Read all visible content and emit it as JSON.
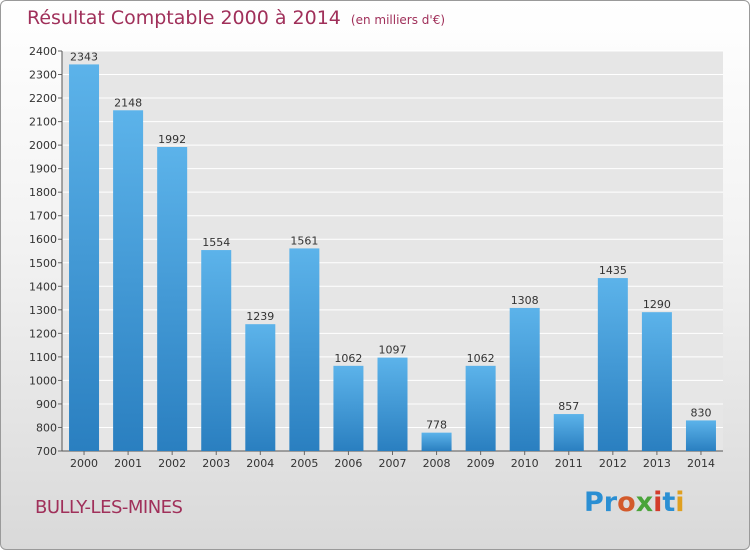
{
  "title": "Résultat Comptable 2000 à 2014",
  "subtitle": "(en milliers d'€)",
  "footer_label": "BULLY-LES-MINES",
  "logo_text": "Proxiti",
  "colors": {
    "title": "#a0305a",
    "bar_top": "#5cb3ea",
    "bar_bottom": "#2a7fc0",
    "logo": [
      "#2b8fd3",
      "#2b8fd3",
      "#d35a2b",
      "#4aa43a",
      "#d33b2b",
      "#2b8fd3",
      "#e0a020"
    ]
  },
  "chart_data": {
    "type": "bar",
    "title": "Résultat Comptable 2000 à 2014",
    "subtitle": "(en milliers d'€)",
    "categories": [
      "2000",
      "2001",
      "2002",
      "2003",
      "2004",
      "2005",
      "2006",
      "2007",
      "2008",
      "2009",
      "2010",
      "2011",
      "2012",
      "2013",
      "2014"
    ],
    "values": [
      2343,
      2148,
      1992,
      1554,
      1239,
      1561,
      1062,
      1097,
      778,
      1062,
      1308,
      857,
      1435,
      1290,
      830
    ],
    "ylim": [
      700,
      2400
    ],
    "yticks": [
      700,
      800,
      900,
      1000,
      1100,
      1200,
      1300,
      1400,
      1500,
      1600,
      1700,
      1800,
      1900,
      2000,
      2100,
      2200,
      2300,
      2400
    ],
    "grid": "horizontal",
    "legend": "none"
  }
}
